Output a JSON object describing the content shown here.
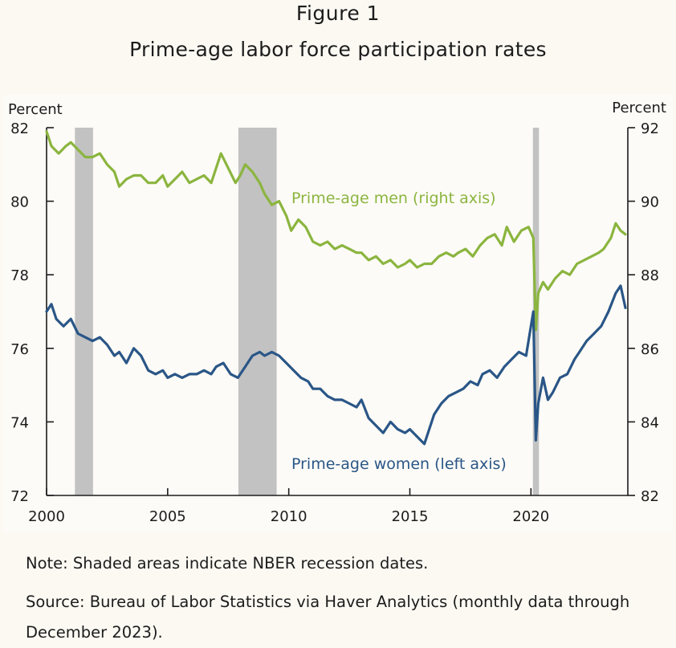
{
  "figure": {
    "label": "Figure 1",
    "title": "Prime-age labor force participation rates"
  },
  "notes": {
    "note": "Note: Shaded areas indicate NBER recession dates.",
    "source": "Source: Bureau of Labor Statistics via Haver Analytics (monthly data through December 2023)."
  },
  "colors": {
    "men": "#8bb53f",
    "women": "#2a5687",
    "recession": "#c2c2c2",
    "axis": "#1c1c1c"
  },
  "chart_data": {
    "type": "line",
    "title": "",
    "xlabel": "",
    "x_range": [
      2000,
      2024
    ],
    "x_ticks": [
      "2000",
      "2005",
      "2010",
      "2015",
      "2020"
    ],
    "left_axis": {
      "label": "Percent",
      "ylim": [
        72,
        82
      ],
      "ticks": [
        "72",
        "74",
        "76",
        "78",
        "80",
        "82"
      ]
    },
    "right_axis": {
      "label": "Percent",
      "ylim": [
        82,
        92
      ],
      "ticks": [
        "82",
        "84",
        "86",
        "88",
        "90",
        "92"
      ]
    },
    "recessions": [
      [
        2001.17,
        2001.92
      ],
      [
        2007.92,
        2009.5
      ],
      [
        2020.08,
        2020.33
      ]
    ],
    "grid": false,
    "series": [
      {
        "name": "Prime-age men (right axis)",
        "axis": "right",
        "x": [
          2000.0,
          2000.2,
          2000.5,
          2000.8,
          2001.0,
          2001.3,
          2001.6,
          2001.9,
          2002.2,
          2002.5,
          2002.8,
          2003.0,
          2003.3,
          2003.6,
          2003.9,
          2004.2,
          2004.5,
          2004.8,
          2005.0,
          2005.3,
          2005.6,
          2005.9,
          2006.2,
          2006.5,
          2006.8,
          2007.0,
          2007.2,
          2007.5,
          2007.8,
          2008.0,
          2008.2,
          2008.5,
          2008.8,
          2009.0,
          2009.3,
          2009.6,
          2009.9,
          2010.1,
          2010.4,
          2010.7,
          2011.0,
          2011.3,
          2011.6,
          2011.9,
          2012.2,
          2012.5,
          2012.8,
          2013.0,
          2013.3,
          2013.6,
          2013.9,
          2014.2,
          2014.5,
          2014.8,
          2015.0,
          2015.3,
          2015.6,
          2015.9,
          2016.2,
          2016.5,
          2016.8,
          2017.0,
          2017.3,
          2017.6,
          2017.9,
          2018.2,
          2018.5,
          2018.8,
          2019.0,
          2019.3,
          2019.6,
          2019.9,
          2020.1,
          2020.2,
          2020.3,
          2020.5,
          2020.7,
          2021.0,
          2021.3,
          2021.6,
          2021.9,
          2022.2,
          2022.5,
          2022.8,
          2023.0,
          2023.3,
          2023.5,
          2023.7,
          2023.9
        ],
        "values": [
          91.9,
          91.5,
          91.3,
          91.5,
          91.6,
          91.4,
          91.2,
          91.2,
          91.3,
          91.0,
          90.8,
          90.4,
          90.6,
          90.7,
          90.7,
          90.5,
          90.5,
          90.7,
          90.4,
          90.6,
          90.8,
          90.5,
          90.6,
          90.7,
          90.5,
          90.9,
          91.3,
          90.9,
          90.5,
          90.7,
          91.0,
          90.8,
          90.5,
          90.2,
          89.9,
          90.0,
          89.6,
          89.2,
          89.5,
          89.3,
          88.9,
          88.8,
          88.9,
          88.7,
          88.8,
          88.7,
          88.6,
          88.6,
          88.4,
          88.5,
          88.3,
          88.4,
          88.2,
          88.3,
          88.4,
          88.2,
          88.3,
          88.3,
          88.5,
          88.6,
          88.5,
          88.6,
          88.7,
          88.5,
          88.8,
          89.0,
          89.1,
          88.8,
          89.3,
          88.9,
          89.2,
          89.3,
          89.0,
          86.5,
          87.5,
          87.8,
          87.6,
          87.9,
          88.1,
          88.0,
          88.3,
          88.4,
          88.5,
          88.6,
          88.7,
          89.0,
          89.4,
          89.2,
          89.1
        ]
      },
      {
        "name": "Prime-age women (left axis)",
        "axis": "left",
        "x": [
          2000.0,
          2000.2,
          2000.4,
          2000.7,
          2001.0,
          2001.3,
          2001.6,
          2001.9,
          2002.2,
          2002.5,
          2002.8,
          2003.0,
          2003.3,
          2003.6,
          2003.9,
          2004.2,
          2004.5,
          2004.8,
          2005.0,
          2005.3,
          2005.6,
          2005.9,
          2006.2,
          2006.5,
          2006.8,
          2007.0,
          2007.3,
          2007.6,
          2007.9,
          2008.2,
          2008.5,
          2008.8,
          2009.0,
          2009.3,
          2009.6,
          2009.9,
          2010.2,
          2010.5,
          2010.8,
          2011.0,
          2011.3,
          2011.6,
          2011.9,
          2012.2,
          2012.5,
          2012.8,
          2013.0,
          2013.3,
          2013.6,
          2013.9,
          2014.2,
          2014.5,
          2014.8,
          2015.0,
          2015.3,
          2015.6,
          2015.8,
          2016.0,
          2016.3,
          2016.6,
          2016.9,
          2017.2,
          2017.5,
          2017.8,
          2018.0,
          2018.3,
          2018.6,
          2018.9,
          2019.2,
          2019.5,
          2019.8,
          2020.0,
          2020.1,
          2020.2,
          2020.3,
          2020.5,
          2020.7,
          2020.9,
          2021.2,
          2021.5,
          2021.8,
          2022.0,
          2022.3,
          2022.6,
          2022.9,
          2023.2,
          2023.5,
          2023.7,
          2023.9
        ],
        "values": [
          77.0,
          77.2,
          76.8,
          76.6,
          76.8,
          76.4,
          76.3,
          76.2,
          76.3,
          76.1,
          75.8,
          75.9,
          75.6,
          76.0,
          75.8,
          75.4,
          75.3,
          75.4,
          75.2,
          75.3,
          75.2,
          75.3,
          75.3,
          75.4,
          75.3,
          75.5,
          75.6,
          75.3,
          75.2,
          75.5,
          75.8,
          75.9,
          75.8,
          75.9,
          75.8,
          75.6,
          75.4,
          75.2,
          75.1,
          74.9,
          74.9,
          74.7,
          74.6,
          74.6,
          74.5,
          74.4,
          74.6,
          74.1,
          73.9,
          73.7,
          74.0,
          73.8,
          73.7,
          73.8,
          73.6,
          73.4,
          73.8,
          74.2,
          74.5,
          74.7,
          74.8,
          74.9,
          75.1,
          75.0,
          75.3,
          75.4,
          75.2,
          75.5,
          75.7,
          75.9,
          75.8,
          76.6,
          77.0,
          73.5,
          74.5,
          75.2,
          74.6,
          74.8,
          75.2,
          75.3,
          75.7,
          75.9,
          76.2,
          76.4,
          76.6,
          77.0,
          77.5,
          77.7,
          77.1
        ]
      }
    ],
    "annotations": [
      "Prime-age men (right axis)",
      "Prime-age women (left axis)"
    ]
  }
}
